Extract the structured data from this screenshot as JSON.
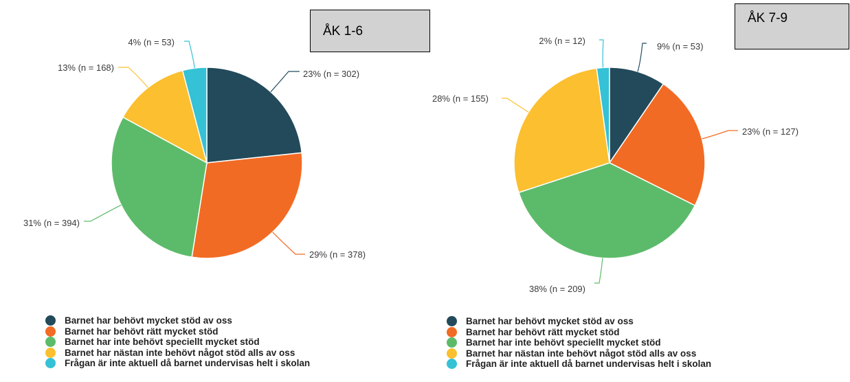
{
  "colors": [
    "#224a5a",
    "#f26b24",
    "#5cbb6a",
    "#fbbf2f",
    "#35c1d6"
  ],
  "categories": [
    "Barnet har behövt mycket stöd av oss",
    "Barnet har behövt rätt mycket stöd",
    "Barnet har inte behövt speciellt mycket stöd",
    "Barnet har nästan inte behövt något stöd alls av oss",
    "Frågan är inte aktuell då barnet undervisas helt i skolan"
  ],
  "chart_data": [
    {
      "type": "pie",
      "title": "ÅK 1-6",
      "categories": [
        "Barnet har behövt mycket stöd av oss",
        "Barnet har behövt rätt mycket stöd",
        "Barnet har inte behövt speciellt mycket stöd",
        "Barnet har nästan inte behövt något stöd alls av oss",
        "Frågan är inte aktuell då barnet undervisas helt i skolan"
      ],
      "values": [
        302,
        378,
        394,
        168,
        53
      ],
      "percents": [
        23,
        29,
        31,
        13,
        4
      ],
      "labels": [
        "23% (n = 302)",
        "29% (n = 378)",
        "31% (n = 394)",
        "13% (n = 168)",
        "4% (n = 53)"
      ],
      "legend_position": "bottom"
    },
    {
      "type": "pie",
      "title": "ÅK 7-9",
      "categories": [
        "Barnet har behövt mycket stöd av oss",
        "Barnet har behövt rätt mycket stöd",
        "Barnet har inte behövt speciellt mycket stöd",
        "Barnet har nästan inte behövt något stöd alls av oss",
        "Frågan är inte aktuell då barnet undervisas helt i skolan"
      ],
      "values": [
        53,
        127,
        209,
        155,
        12
      ],
      "percents": [
        9,
        23,
        38,
        28,
        2
      ],
      "labels": [
        "9% (n = 53)",
        "23% (n = 127)",
        "38% (n = 209)",
        "28% (n = 155)",
        "2% (n = 12)"
      ],
      "legend_position": "bottom"
    }
  ]
}
